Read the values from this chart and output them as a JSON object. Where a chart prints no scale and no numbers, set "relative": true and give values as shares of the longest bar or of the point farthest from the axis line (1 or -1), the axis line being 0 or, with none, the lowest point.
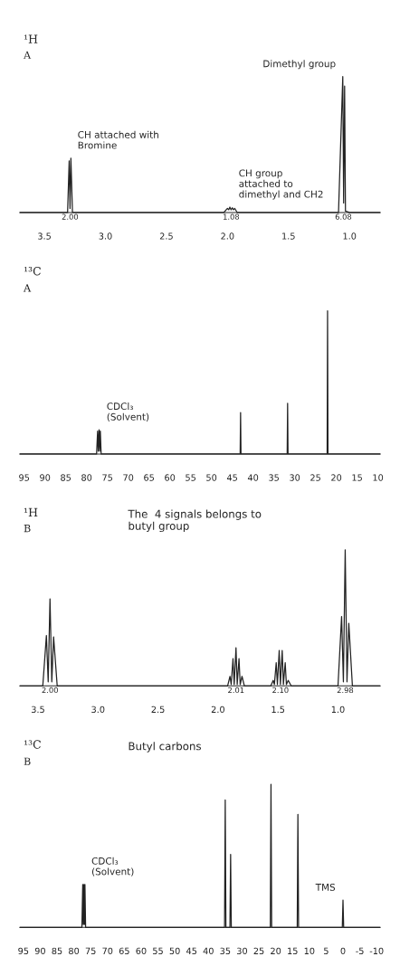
{
  "chart_data": [
    {
      "type": "line",
      "title": "¹H",
      "subtitle": "A",
      "relative": true,
      "color": "#222222",
      "xlim": [
        3.7,
        0.75
      ],
      "xticks": [
        3.5,
        {
          "value": 3,
          "label": "3.0"
        },
        2.5,
        {
          "value": 2,
          "label": "2.0"
        },
        1.5,
        {
          "value": 1,
          "label": "1.0"
        }
      ],
      "grid": false,
      "x": [
        3.7,
        3.31,
        3.297,
        3.29,
        3.283,
        3.27,
        3.25,
        2.03,
        2.01,
        2.0,
        1.99,
        1.98,
        1.97,
        1.96,
        1.95,
        1.94,
        1.92,
        1.09,
        1.055,
        1.048,
        1.04,
        1.033,
        1.0,
        0.75
      ],
      "values": [
        0,
        0,
        0.38,
        0.03,
        0.4,
        0,
        0,
        0,
        0.02,
        0.03,
        0.02,
        0.04,
        0.02,
        0.035,
        0.02,
        0.03,
        0,
        0,
        1.0,
        0.07,
        0.93,
        0.01,
        0,
        0
      ],
      "annotations": [
        {
          "text": "CH attached with\nBromine",
          "x": 3.29,
          "y": 0.4
        },
        {
          "text": "CH group\nattached to\ndimethyl and CH2",
          "x": 1.97,
          "y": 0.04
        },
        {
          "text": "Dimethyl group",
          "x": 1.05,
          "y": 1.0
        },
        {
          "text": "2.00",
          "x": 3.29,
          "y": 0
        },
        {
          "text": "1.08",
          "x": 1.97,
          "y": 0
        },
        {
          "text": "6.08",
          "x": 1.05,
          "y": 0
        }
      ]
    },
    {
      "type": "line",
      "title": "¹³C",
      "subtitle": "A",
      "relative": true,
      "color": "#222222",
      "xlim": [
        96,
        9.5
      ],
      "xticks": [
        95,
        90,
        85,
        80,
        75,
        70,
        65,
        60,
        55,
        50,
        45,
        40,
        35,
        30,
        25,
        20,
        15,
        10
      ],
      "grid": false,
      "x": [
        96,
        77.6,
        77.35,
        77.2,
        77.0,
        76.85,
        76.7,
        76.5,
        43.1,
        43.0,
        42.9,
        31.8,
        31.7,
        31.6,
        22.2,
        22.1,
        22.0,
        9.5
      ],
      "values": [
        0,
        0,
        0.16,
        0.02,
        0.17,
        0.02,
        0.16,
        0,
        0,
        0.29,
        0,
        0,
        0.355,
        0,
        0,
        1.0,
        0,
        0
      ],
      "annotations": [
        {
          "text": "CDCl₃\n(Solvent)",
          "x": 77.0,
          "y": 0.17
        }
      ]
    },
    {
      "type": "line",
      "title": "¹H",
      "subtitle": "B",
      "relative": true,
      "color": "#222222",
      "xlim": [
        3.65,
        0.65
      ],
      "xticks": [
        3.5,
        {
          "value": 3,
          "label": "3.0"
        },
        2.5,
        {
          "value": 2,
          "label": "2.0"
        },
        1.5,
        {
          "value": 1,
          "label": "1.0"
        }
      ],
      "grid": false,
      "x": [
        3.65,
        3.46,
        3.43,
        3.415,
        3.4,
        3.385,
        3.37,
        3.34,
        1.92,
        1.9,
        1.89,
        1.875,
        1.865,
        1.85,
        1.84,
        1.825,
        1.815,
        1.8,
        1.78,
        1.56,
        1.54,
        1.53,
        1.515,
        1.505,
        1.49,
        1.48,
        1.465,
        1.455,
        1.44,
        1.43,
        1.415,
        1.39,
        1.0,
        0.97,
        0.955,
        0.94,
        0.925,
        0.91,
        0.88,
        0.65
      ],
      "values": [
        0,
        0,
        0.37,
        0.03,
        0.64,
        0.03,
        0.36,
        0,
        0,
        0.07,
        0.01,
        0.2,
        0.01,
        0.28,
        0.01,
        0.2,
        0.01,
        0.07,
        0,
        0,
        0.04,
        0.01,
        0.17,
        0.01,
        0.26,
        0.01,
        0.26,
        0.01,
        0.17,
        0.01,
        0.04,
        0,
        0,
        0.51,
        0.03,
        1.0,
        0.03,
        0.46,
        0,
        0
      ],
      "annotations": [
        "The  4 signals belongs to\nbutyl group",
        {
          "text": "2.00",
          "x": 3.4,
          "y": 0
        },
        {
          "text": "2.01",
          "x": 1.85,
          "y": 0
        },
        {
          "text": "2.10",
          "x": 1.48,
          "y": 0
        },
        {
          "text": "2.98",
          "x": 0.94,
          "y": 0
        }
      ]
    },
    {
      "type": "line",
      "title": "¹³C",
      "subtitle": "B",
      "relative": true,
      "color": "#222222",
      "xlim": [
        96,
        -11
      ],
      "xticks": [
        95,
        90,
        85,
        80,
        75,
        70,
        65,
        60,
        55,
        50,
        45,
        40,
        35,
        30,
        25,
        20,
        15,
        10,
        5,
        0,
        -5,
        -10
      ],
      "grid": false,
      "x": [
        96,
        77.6,
        77.35,
        77.2,
        77.0,
        76.85,
        76.7,
        76.5,
        35.2,
        35.0,
        34.8,
        33.6,
        33.4,
        33.2,
        21.6,
        21.4,
        21.2,
        13.6,
        13.4,
        13.2,
        0.2,
        0,
        -0.2,
        -11
      ],
      "values": [
        0,
        0,
        0.3,
        0.02,
        0.3,
        0.02,
        0.3,
        0,
        0,
        0.89,
        0,
        0,
        0.51,
        0,
        0,
        1.0,
        0,
        0,
        0.79,
        0,
        0,
        0.19,
        0,
        0
      ],
      "annotations": [
        "Butyl carbons",
        {
          "text": "CDCl₃\n(Solvent)",
          "x": 77.0,
          "y": 0.3
        },
        {
          "text": "TMS",
          "x": 0,
          "y": 0.19
        }
      ]
    }
  ]
}
